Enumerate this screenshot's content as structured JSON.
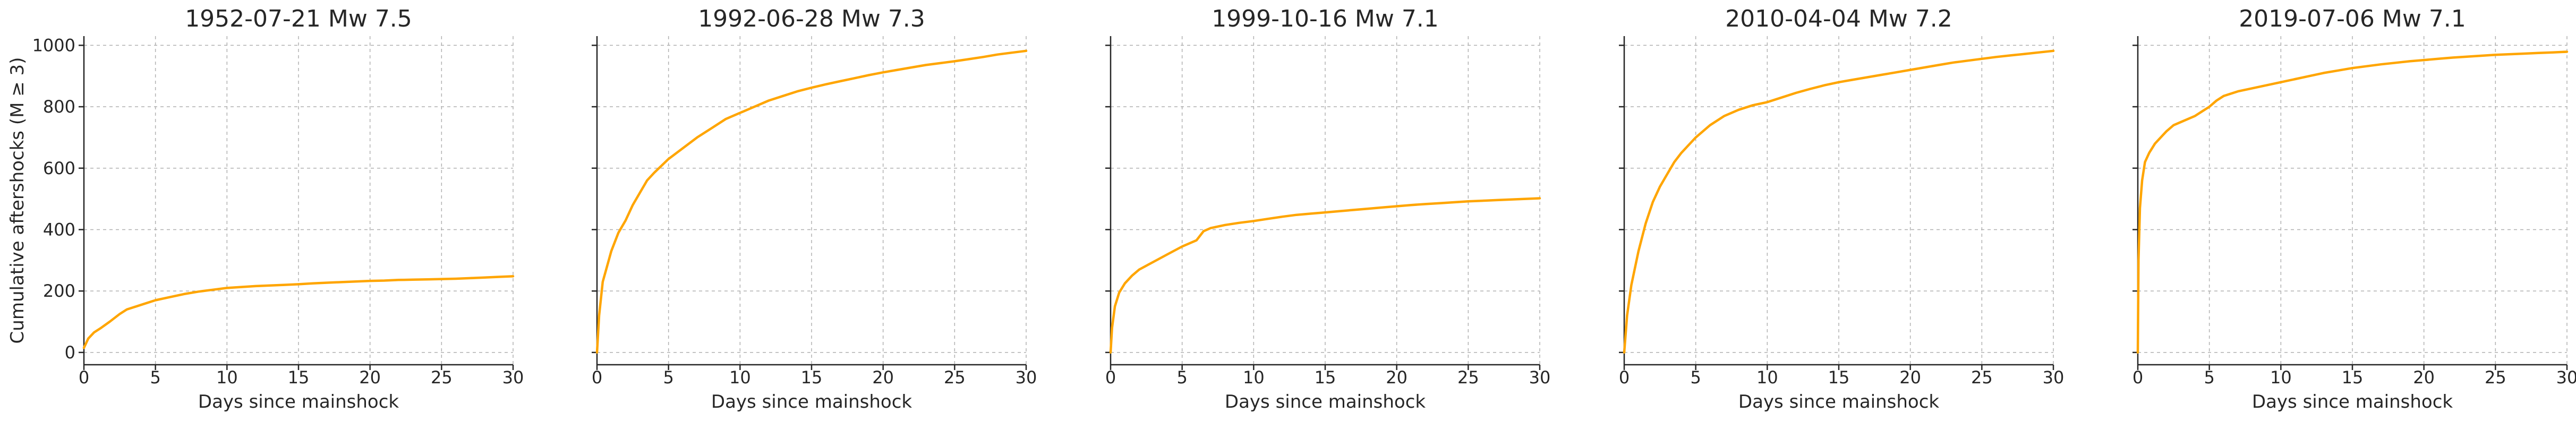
{
  "chart_data": [
    {
      "type": "line",
      "title": "1952-07-21  Mw 7.5",
      "xlabel": "Days since mainshock",
      "ylabel": "Cumulative aftershocks (M ≥ 3)",
      "xlim": [
        0,
        30
      ],
      "ylim": [
        -40,
        1030
      ],
      "xticks": [
        0,
        5,
        10,
        15,
        20,
        25,
        30
      ],
      "yticks": [
        0,
        200,
        400,
        600,
        800,
        1000
      ],
      "grid": true,
      "series": [
        {
          "color": "#FFA500",
          "x": [
            0,
            0.3,
            0.7,
            1.2,
            1.8,
            2.5,
            3,
            4,
            5,
            6,
            7,
            8,
            9,
            10,
            11,
            12,
            13,
            14,
            15,
            16,
            17,
            18,
            19,
            20,
            21,
            22,
            23,
            24,
            25,
            26,
            27,
            28,
            29,
            30
          ],
          "y": [
            15,
            45,
            65,
            80,
            100,
            125,
            140,
            155,
            170,
            180,
            190,
            198,
            204,
            210,
            213,
            216,
            218,
            220,
            222,
            225,
            227,
            229,
            231,
            233,
            234,
            236,
            237,
            238,
            239,
            240,
            242,
            244,
            246,
            248
          ]
        }
      ]
    },
    {
      "type": "line",
      "title": "1992-06-28  Mw 7.3",
      "xlabel": "Days since mainshock",
      "xlim": [
        0,
        30
      ],
      "ylim": [
        -40,
        1030
      ],
      "xticks": [
        0,
        5,
        10,
        15,
        20,
        25,
        30
      ],
      "yticks": [
        0,
        200,
        400,
        600,
        800,
        1000
      ],
      "grid": true,
      "series": [
        {
          "color": "#FFA500",
          "x": [
            0,
            0.15,
            0.4,
            0.7,
            1,
            1.5,
            2,
            2.5,
            3,
            3.5,
            4,
            5,
            6,
            7,
            8,
            9,
            10,
            11,
            12,
            13,
            14,
            15,
            16,
            17,
            18,
            19,
            20,
            21,
            22,
            23,
            24,
            25,
            26,
            27,
            28,
            29,
            30
          ],
          "y": [
            0,
            120,
            230,
            280,
            330,
            390,
            430,
            480,
            520,
            560,
            585,
            630,
            665,
            700,
            730,
            760,
            780,
            800,
            820,
            835,
            850,
            862,
            873,
            883,
            893,
            903,
            912,
            920,
            928,
            936,
            942,
            948,
            955,
            962,
            970,
            976,
            982
          ]
        }
      ]
    },
    {
      "type": "line",
      "title": "1999-10-16  Mw 7.1",
      "xlabel": "Days since mainshock",
      "xlim": [
        0,
        30
      ],
      "ylim": [
        -40,
        1030
      ],
      "xticks": [
        0,
        5,
        10,
        15,
        20,
        25,
        30
      ],
      "yticks": [
        0,
        200,
        400,
        600,
        800,
        1000
      ],
      "grid": true,
      "series": [
        {
          "color": "#FFA500",
          "x": [
            0,
            0.1,
            0.3,
            0.6,
            1,
            1.5,
            2,
            3,
            4,
            5,
            6,
            6.5,
            7,
            8,
            9,
            10,
            11,
            12,
            13,
            14,
            15,
            16,
            17,
            18,
            19,
            20,
            21,
            22,
            23,
            24,
            25,
            26,
            27,
            28,
            29,
            30
          ],
          "y": [
            0,
            80,
            150,
            195,
            225,
            250,
            270,
            295,
            320,
            345,
            365,
            395,
            405,
            415,
            422,
            428,
            435,
            442,
            448,
            452,
            456,
            460,
            464,
            468,
            472,
            476,
            480,
            483,
            486,
            489,
            492,
            494,
            496,
            498,
            500,
            502
          ]
        }
      ]
    },
    {
      "type": "line",
      "title": "2010-04-04  Mw 7.2",
      "xlabel": "Days since mainshock",
      "xlim": [
        0,
        30
      ],
      "ylim": [
        -40,
        1030
      ],
      "xticks": [
        0,
        5,
        10,
        15,
        20,
        25,
        30
      ],
      "yticks": [
        0,
        200,
        400,
        600,
        800,
        1000
      ],
      "grid": true,
      "series": [
        {
          "color": "#FFA500",
          "x": [
            0,
            0.2,
            0.5,
            1,
            1.5,
            2,
            2.5,
            3,
            3.5,
            4,
            5,
            6,
            7,
            8,
            9,
            10,
            11,
            12,
            13,
            14,
            15,
            16,
            17,
            18,
            19,
            20,
            21,
            22,
            23,
            24,
            25,
            26,
            27,
            28,
            29,
            30
          ],
          "y": [
            0,
            120,
            220,
            330,
            420,
            490,
            540,
            580,
            620,
            650,
            700,
            740,
            770,
            790,
            805,
            815,
            830,
            845,
            858,
            870,
            880,
            888,
            896,
            904,
            912,
            920,
            928,
            936,
            944,
            950,
            956,
            962,
            967,
            972,
            977,
            982
          ]
        }
      ]
    },
    {
      "type": "line",
      "title": "2019-07-06  Mw 7.1",
      "xlabel": "Days since mainshock",
      "xlim": [
        0,
        30
      ],
      "ylim": [
        -40,
        1030
      ],
      "xticks": [
        0,
        5,
        10,
        15,
        20,
        25,
        30
      ],
      "yticks": [
        0,
        200,
        400,
        600,
        800,
        1000
      ],
      "grid": true,
      "series": [
        {
          "color": "#FFA500",
          "x": [
            0,
            0.05,
            0.15,
            0.3,
            0.5,
            0.8,
            1.2,
            1.6,
            2,
            2.5,
            3,
            3.5,
            4,
            4.5,
            5,
            5.5,
            6,
            7,
            8,
            9,
            10,
            11,
            12,
            13,
            14,
            15,
            16,
            17,
            18,
            19,
            20,
            21,
            22,
            23,
            24,
            25,
            26,
            27,
            28,
            29,
            30
          ],
          "y": [
            0,
            300,
            470,
            560,
            620,
            650,
            680,
            700,
            720,
            740,
            750,
            760,
            770,
            785,
            800,
            820,
            835,
            850,
            860,
            870,
            880,
            890,
            900,
            910,
            918,
            926,
            932,
            938,
            943,
            948,
            952,
            956,
            960,
            963,
            966,
            969,
            971,
            973,
            975,
            977,
            979
          ]
        }
      ]
    }
  ]
}
